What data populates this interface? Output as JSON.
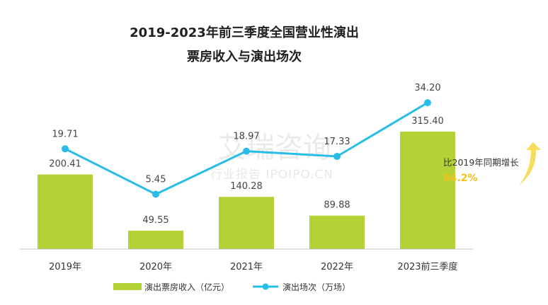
{
  "chart_data": {
    "type": "bar",
    "title_line1": "2019-2023年前三季度全国营业性演出",
    "title_line2": "票房收入与演出场次",
    "categories": [
      "2019年",
      "2020年",
      "2021年",
      "2022年",
      "2023前三季度"
    ],
    "series": [
      {
        "name": "演出票房收入（亿元）",
        "type": "bar",
        "color": "#b2d235",
        "values": [
          200.41,
          49.55,
          140.28,
          89.88,
          315.4
        ],
        "labels": [
          "200.41",
          "49.55",
          "140.28",
          "89.88",
          "315.40"
        ]
      },
      {
        "name": "演出场次（万场）",
        "type": "line",
        "color": "#28bde6",
        "values": [
          19.71,
          5.45,
          18.97,
          17.33,
          34.2
        ],
        "labels": [
          "19.71",
          "5.45",
          "18.97",
          "17.33",
          "34.20"
        ]
      }
    ],
    "annotation": {
      "text": "比2019年同期增长",
      "value": "84.2%",
      "color": "#f3c21c"
    },
    "legend_position": "bottom",
    "grid": false
  },
  "watermark": {
    "line1": "艾瑞咨询",
    "line2": "行业报告 IPOIPO.CN"
  }
}
